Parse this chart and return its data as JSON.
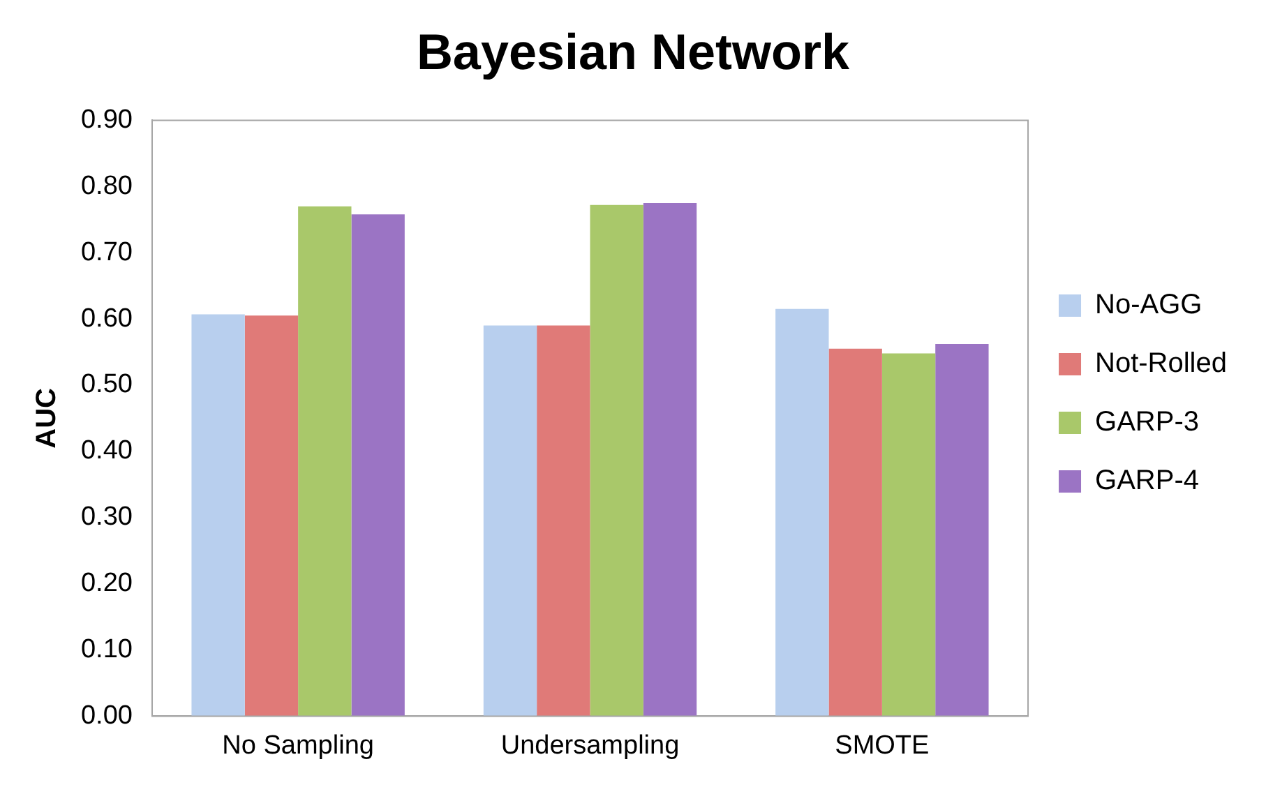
{
  "chart_data": {
    "type": "bar",
    "title": "Bayesian Network",
    "ylabel": "AUC",
    "categories": [
      "No Sampling",
      "Undersampling",
      "SMOTE"
    ],
    "series": [
      {
        "name": "No-AGG",
        "color": "#b8cfee",
        "values": [
          0.607,
          0.59,
          0.615
        ]
      },
      {
        "name": "Not-Rolled",
        "color": "#e07a78",
        "values": [
          0.605,
          0.59,
          0.555
        ]
      },
      {
        "name": "GARP-3",
        "color": "#a9c86a",
        "values": [
          0.77,
          0.772,
          0.548
        ]
      },
      {
        "name": "GARP-4",
        "color": "#9b74c4",
        "values": [
          0.758,
          0.775,
          0.562
        ]
      }
    ],
    "ylim": [
      0,
      0.9
    ],
    "yticks": [
      {
        "value": 0,
        "label": "0.00"
      },
      {
        "value": 0.1,
        "label": "0.10"
      },
      {
        "value": 0.2,
        "label": "0.20"
      },
      {
        "value": 0.3,
        "label": "0.30"
      },
      {
        "value": 0.4,
        "label": "0.40"
      },
      {
        "value": 0.5,
        "label": "0.50"
      },
      {
        "value": 0.6,
        "label": "0.60"
      },
      {
        "value": 0.7,
        "label": "0.70"
      },
      {
        "value": 0.8,
        "label": "0.80"
      },
      {
        "value": 0.9,
        "label": "0.90"
      }
    ],
    "grid": false,
    "legend": "right"
  }
}
